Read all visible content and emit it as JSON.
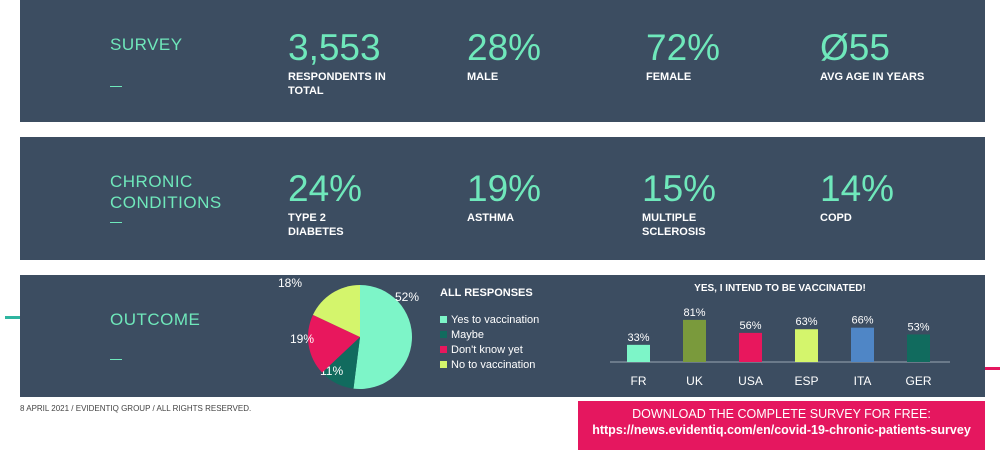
{
  "survey": {
    "label": "SURVEY",
    "stats": [
      {
        "value": "3,553",
        "desc": "RESPONDENTS IN TOTAL"
      },
      {
        "value": "28%",
        "desc": "MALE"
      },
      {
        "value": "72%",
        "desc": "FEMALE"
      },
      {
        "value": "Ø55",
        "desc": "AVG AGE IN YEARS"
      }
    ]
  },
  "chronic": {
    "label1": "CHRONIC",
    "label2": "CONDITIONS",
    "stats": [
      {
        "value": "24%",
        "desc": "TYPE 2 DIABETES"
      },
      {
        "value": "19%",
        "desc": "ASTHMA"
      },
      {
        "value": "15%",
        "desc": "MULTIPLE SCLEROSIS"
      },
      {
        "value": "14%",
        "desc": "COPD"
      }
    ]
  },
  "outcome": {
    "label": "OUTCOME"
  },
  "chart_data": [
    {
      "type": "pie",
      "title": "ALL RESPONSES",
      "slices": [
        {
          "name": "Yes to vaccination",
          "value": 52,
          "label": "52%",
          "color": "#7df5c8"
        },
        {
          "name": "Maybe",
          "value": 11,
          "label": "11%",
          "color": "#116b5e"
        },
        {
          "name": "Don't know yet",
          "value": 19,
          "label": "19%",
          "color": "#e8175d"
        },
        {
          "name": "No to vaccination",
          "value": 18,
          "label": "18%",
          "color": "#d4f56c"
        }
      ]
    },
    {
      "type": "bar",
      "title": "YES, I INTEND TO BE VACCINATED!",
      "categories": [
        "FR",
        "UK",
        "USA",
        "ESP",
        "ITA",
        "GER"
      ],
      "values": [
        33,
        81,
        56,
        63,
        66,
        53
      ],
      "labels": [
        "33%",
        "81%",
        "56%",
        "63%",
        "66%",
        "53%"
      ],
      "colors": [
        "#7df5c8",
        "#7a9a3c",
        "#e8175d",
        "#d4f56c",
        "#4f86c6",
        "#116b5e"
      ]
    }
  ],
  "footer": "8 APRIL 2021 / EVIDENTIQ GROUP / ALL RIGHTS RESERVED.",
  "download": {
    "line1": "DOWNLOAD THE COMPLETE SURVEY FOR FREE:",
    "url": "https://news.evidentiq.com/en/covid-19-chronic-patients-survey"
  }
}
